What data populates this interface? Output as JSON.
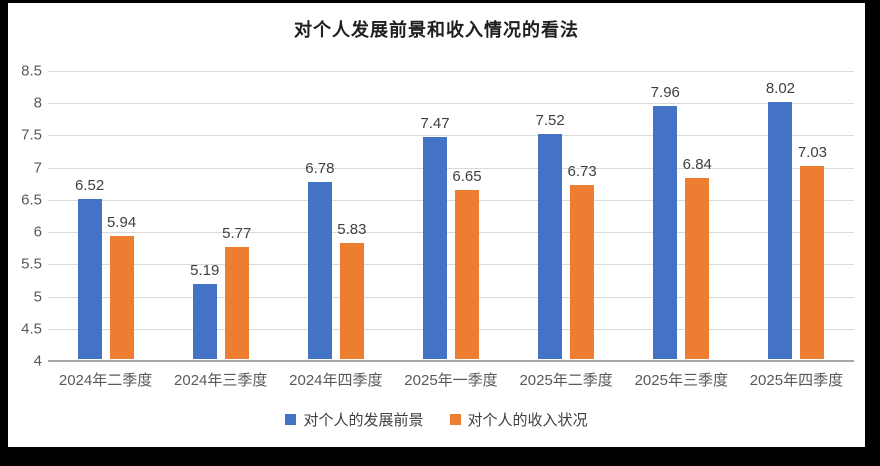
{
  "page": {
    "border_color": "#000000",
    "chart_background": "#ffffff"
  },
  "chart_data": {
    "type": "bar",
    "title": "对个人发展前景和收入情况的看法",
    "categories": [
      "2024年二季度",
      "2024年三季度",
      "2024年四季度",
      "2025年一季度",
      "2025年二季度",
      "2025年三季度",
      "2025年四季度"
    ],
    "series": [
      {
        "name": "对个人的发展前景",
        "color": "#4472C4",
        "values": [
          6.52,
          5.19,
          6.78,
          7.47,
          7.52,
          7.96,
          8.02
        ]
      },
      {
        "name": "对个人的收入状况",
        "color": "#ED7D31",
        "values": [
          5.94,
          5.77,
          5.83,
          6.65,
          6.73,
          6.84,
          7.03
        ]
      }
    ],
    "xlabel": "",
    "ylabel": "",
    "ylim": [
      4,
      8.5
    ],
    "yticks": [
      "8.5",
      "8",
      "7.5",
      "7",
      "6.5",
      "6",
      "5.5",
      "5",
      "4.5",
      "4"
    ],
    "grid": true,
    "data_labels": true,
    "legend_position": "bottom",
    "grid_color": "#d9d9d9",
    "axis_color": "#a6a6a6"
  }
}
